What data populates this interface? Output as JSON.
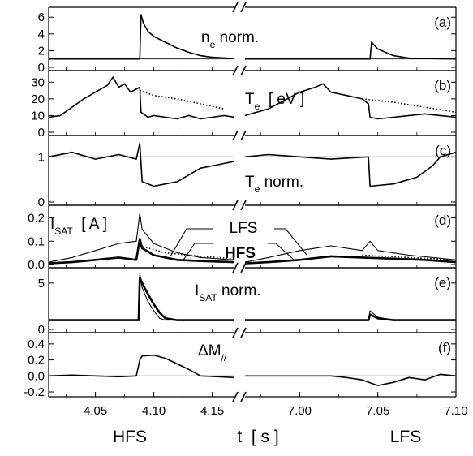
{
  "figure": {
    "footer_left": "HFS",
    "footer_center": "t  [ s ]",
    "footer_right": "LFS",
    "break_mark": "//"
  },
  "axis": {
    "x_ticks_left": [
      "4.05",
      "4.10",
      "4.15"
    ],
    "x_ticks_right": [
      "7.00",
      "7.05",
      "7.10"
    ],
    "x_range_left": [
      4.01,
      4.169
    ],
    "x_range_right": [
      6.965,
      7.1
    ]
  },
  "chart_data": [
    {
      "type": "line",
      "panel": "a",
      "label": "(a)",
      "annotation": {
        "main": "n",
        "sub": "e",
        "rest": " norm."
      },
      "y_ticks": [
        "0",
        "2",
        "4",
        "6"
      ],
      "ylim": [
        0,
        6.8
      ],
      "reference_line": 1,
      "series": [
        {
          "id": "ne",
          "style": "solid",
          "left": [
            [
              4.01,
              1.0
            ],
            [
              4.04,
              1.0
            ],
            [
              4.08,
              1.0
            ],
            [
              4.088,
              1.0
            ],
            [
              4.089,
              6.3
            ],
            [
              4.091,
              5.3
            ],
            [
              4.095,
              4.3
            ],
            [
              4.1,
              3.7
            ],
            [
              4.11,
              3.0
            ],
            [
              4.12,
              2.3
            ],
            [
              4.13,
              1.8
            ],
            [
              4.14,
              1.4
            ],
            [
              4.15,
              1.2
            ],
            [
              4.169,
              1.05
            ]
          ],
          "right": [
            [
              6.965,
              1.0
            ],
            [
              7.0,
              1.0
            ],
            [
              7.045,
              1.0
            ],
            [
              7.046,
              3.0
            ],
            [
              7.05,
              2.2
            ],
            [
              7.06,
              1.4
            ],
            [
              7.07,
              1.1
            ],
            [
              7.1,
              1.0
            ]
          ]
        }
      ]
    },
    {
      "type": "line",
      "panel": "b",
      "label": "(b)",
      "annotation": {
        "main": "T",
        "sub": "e",
        "rest": "  [ eV ]"
      },
      "y_ticks": [
        "0",
        "10",
        "20",
        "30"
      ],
      "ylim": [
        0,
        35
      ],
      "series": [
        {
          "id": "Te-measured",
          "style": "solid",
          "left": [
            [
              4.01,
              9
            ],
            [
              4.02,
              10
            ],
            [
              4.03,
              15
            ],
            [
              4.04,
              20
            ],
            [
              4.05,
              24
            ],
            [
              4.06,
              28
            ],
            [
              4.065,
              33
            ],
            [
              4.07,
              27
            ],
            [
              4.075,
              29
            ],
            [
              4.08,
              24
            ],
            [
              4.088,
              27
            ],
            [
              4.089,
              12
            ],
            [
              4.095,
              9
            ],
            [
              4.1,
              10
            ],
            [
              4.11,
              9
            ],
            [
              4.12,
              8
            ],
            [
              4.13,
              10
            ],
            [
              4.14,
              8
            ],
            [
              4.15,
              9
            ],
            [
              4.16,
              10
            ],
            [
              4.169,
              9
            ]
          ],
          "right": [
            [
              6.965,
              10
            ],
            [
              6.98,
              14
            ],
            [
              6.99,
              19
            ],
            [
              7.0,
              24
            ],
            [
              7.01,
              27
            ],
            [
              7.015,
              29
            ],
            [
              7.02,
              24
            ],
            [
              7.03,
              22
            ],
            [
              7.04,
              20
            ],
            [
              7.044,
              17
            ],
            [
              7.045,
              9
            ],
            [
              7.05,
              8
            ],
            [
              7.06,
              9
            ],
            [
              7.07,
              10
            ],
            [
              7.08,
              11
            ],
            [
              7.09,
              10
            ],
            [
              7.1,
              9
            ]
          ]
        },
        {
          "id": "Te-trend",
          "style": "dotted",
          "left": [
            [
              4.088,
              25
            ],
            [
              4.1,
              22
            ],
            [
              4.12,
              20
            ],
            [
              4.14,
              17
            ],
            [
              4.16,
              14
            ]
          ],
          "right": [
            [
              7.04,
              20
            ],
            [
              7.06,
              18
            ],
            [
              7.08,
              15
            ],
            [
              7.1,
              12
            ]
          ]
        }
      ]
    },
    {
      "type": "line",
      "panel": "c",
      "label": "(c)",
      "annotation": {
        "main": "T",
        "sub": "e",
        "rest": " norm."
      },
      "y_ticks": [
        "0",
        "1"
      ],
      "ylim": [
        0,
        1.4
      ],
      "reference_line": 1,
      "series": [
        {
          "id": "Te-norm",
          "style": "solid",
          "left": [
            [
              4.01,
              1.0
            ],
            [
              4.03,
              1.1
            ],
            [
              4.05,
              0.95
            ],
            [
              4.07,
              1.05
            ],
            [
              4.085,
              0.95
            ],
            [
              4.088,
              1.3
            ],
            [
              4.09,
              0.45
            ],
            [
              4.1,
              0.35
            ],
            [
              4.11,
              0.4
            ],
            [
              4.12,
              0.45
            ],
            [
              4.13,
              0.6
            ],
            [
              4.14,
              0.75
            ],
            [
              4.15,
              0.8
            ],
            [
              4.169,
              0.9
            ]
          ],
          "right": [
            [
              6.965,
              1.0
            ],
            [
              6.98,
              1.05
            ],
            [
              7.0,
              1.0
            ],
            [
              7.02,
              0.95
            ],
            [
              7.044,
              1.0
            ],
            [
              7.045,
              0.35
            ],
            [
              7.06,
              0.4
            ],
            [
              7.075,
              0.55
            ],
            [
              7.085,
              0.8
            ],
            [
              7.09,
              1.0
            ],
            [
              7.1,
              1.1
            ]
          ]
        }
      ]
    },
    {
      "type": "line",
      "panel": "d",
      "label": "(d)",
      "annotation": {
        "main": "I",
        "sub": "SAT",
        "rest": "  [ A ]"
      },
      "series_labels": {
        "lfs": "LFS",
        "hfs": "HFS"
      },
      "y_ticks": [
        "0.0",
        "0.1",
        "0.2"
      ],
      "ylim": [
        0,
        0.24
      ],
      "series": [
        {
          "id": "isat-lfs",
          "name": "LFS",
          "style": "thin",
          "left": [
            [
              4.01,
              0.01
            ],
            [
              4.03,
              0.03
            ],
            [
              4.05,
              0.06
            ],
            [
              4.07,
              0.09
            ],
            [
              4.085,
              0.1
            ],
            [
              4.088,
              0.22
            ],
            [
              4.09,
              0.15
            ],
            [
              4.1,
              0.09
            ],
            [
              4.12,
              0.05
            ],
            [
              4.14,
              0.03
            ],
            [
              4.169,
              0.02
            ]
          ],
          "right": [
            [
              6.965,
              0.01
            ],
            [
              6.98,
              0.03
            ],
            [
              7.0,
              0.06
            ],
            [
              7.02,
              0.08
            ],
            [
              7.04,
              0.06
            ],
            [
              7.045,
              0.1
            ],
            [
              7.05,
              0.06
            ],
            [
              7.07,
              0.04
            ],
            [
              7.1,
              0.02
            ]
          ]
        },
        {
          "id": "isat-hfs",
          "name": "HFS",
          "style": "bold",
          "left": [
            [
              4.01,
              0.005
            ],
            [
              4.03,
              0.01
            ],
            [
              4.05,
              0.02
            ],
            [
              4.07,
              0.03
            ],
            [
              4.085,
              0.02
            ],
            [
              4.088,
              0.11
            ],
            [
              4.09,
              0.07
            ],
            [
              4.1,
              0.04
            ],
            [
              4.12,
              0.02
            ],
            [
              4.14,
              0.015
            ],
            [
              4.169,
              0.01
            ]
          ],
          "right": [
            [
              6.965,
              0.005
            ],
            [
              6.98,
              0.01
            ],
            [
              7.0,
              0.02
            ],
            [
              7.02,
              0.035
            ],
            [
              7.04,
              0.03
            ],
            [
              7.06,
              0.025
            ],
            [
              7.08,
              0.02
            ],
            [
              7.1,
              0.01
            ]
          ]
        },
        {
          "id": "isat-trend",
          "style": "dotted",
          "left": [
            [
              4.088,
              0.08
            ],
            [
              4.11,
              0.05
            ],
            [
              4.14,
              0.035
            ],
            [
              4.169,
              0.025
            ]
          ],
          "right": [
            [
              7.04,
              0.04
            ],
            [
              7.07,
              0.03
            ],
            [
              7.1,
              0.02
            ]
          ]
        }
      ]
    },
    {
      "type": "line",
      "panel": "e",
      "label": "(e)",
      "annotation": {
        "main": "I",
        "sub": "SAT",
        "rest": " norm."
      },
      "y_ticks": [
        "0",
        "5"
      ],
      "ylim": [
        0,
        6.3
      ],
      "reference_line": 1,
      "series": [
        {
          "id": "isat-norm-lfs",
          "style": "thin",
          "left": [
            [
              4.01,
              1.0
            ],
            [
              4.05,
              1.0
            ],
            [
              4.08,
              1.0
            ],
            [
              4.087,
              1.0
            ],
            [
              4.088,
              6.0
            ],
            [
              4.09,
              4.5
            ],
            [
              4.095,
              3.0
            ],
            [
              4.1,
              2.0
            ],
            [
              4.105,
              1.2
            ],
            [
              4.11,
              1.0
            ],
            [
              4.169,
              1.0
            ]
          ],
          "right": [
            [
              6.965,
              1.0
            ],
            [
              7.0,
              1.0
            ],
            [
              7.044,
              1.0
            ],
            [
              7.045,
              2.0
            ],
            [
              7.05,
              1.3
            ],
            [
              7.06,
              1.0
            ],
            [
              7.1,
              1.0
            ]
          ]
        },
        {
          "id": "isat-norm-hfs",
          "style": "bold",
          "left": [
            [
              4.01,
              1.0
            ],
            [
              4.05,
              1.0
            ],
            [
              4.08,
              1.0
            ],
            [
              4.087,
              1.0
            ],
            [
              4.088,
              5.6
            ],
            [
              4.09,
              5.0
            ],
            [
              4.095,
              3.8
            ],
            [
              4.1,
              2.7
            ],
            [
              4.105,
              1.8
            ],
            [
              4.11,
              1.2
            ],
            [
              4.12,
              1.0
            ],
            [
              4.169,
              1.0
            ]
          ],
          "right": [
            [
              6.965,
              1.0
            ],
            [
              7.0,
              1.0
            ],
            [
              7.044,
              1.0
            ],
            [
              7.045,
              1.6
            ],
            [
              7.05,
              1.2
            ],
            [
              7.06,
              1.0
            ],
            [
              7.1,
              1.0
            ]
          ]
        }
      ]
    },
    {
      "type": "line",
      "panel": "f",
      "label": "(f)",
      "annotation": {
        "main": "ΔM",
        "sub": "//",
        "rest": ""
      },
      "y_ticks": [
        "-0.2",
        "0.0",
        "0.2",
        "0.4"
      ],
      "ylim": [
        -0.22,
        0.5
      ],
      "reference_line": 0,
      "series": [
        {
          "id": "delta-m",
          "style": "solid",
          "left": [
            [
              4.01,
              0.0
            ],
            [
              4.03,
              0.01
            ],
            [
              4.05,
              0.0
            ],
            [
              4.07,
              -0.01
            ],
            [
              4.085,
              0.0
            ],
            [
              4.088,
              0.2
            ],
            [
              4.09,
              0.25
            ],
            [
              4.1,
              0.26
            ],
            [
              4.11,
              0.22
            ],
            [
              4.12,
              0.15
            ],
            [
              4.13,
              0.08
            ],
            [
              4.14,
              0.0
            ],
            [
              4.169,
              -0.02
            ]
          ],
          "right": [
            [
              6.965,
              0.0
            ],
            [
              7.0,
              0.0
            ],
            [
              7.02,
              0.0
            ],
            [
              7.03,
              -0.02
            ],
            [
              7.04,
              -0.05
            ],
            [
              7.05,
              -0.12
            ],
            [
              7.06,
              -0.08
            ],
            [
              7.07,
              -0.02
            ],
            [
              7.08,
              -0.05
            ],
            [
              7.09,
              0.02
            ],
            [
              7.1,
              0.0
            ]
          ]
        }
      ]
    }
  ]
}
